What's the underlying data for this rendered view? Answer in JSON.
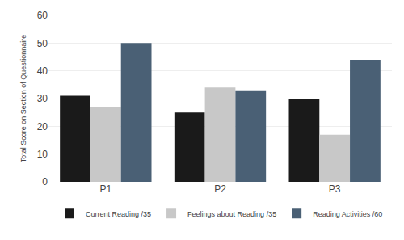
{
  "chart_data": {
    "type": "bar",
    "categories": [
      "P1",
      "P2",
      "P3"
    ],
    "series": [
      {
        "name": "Current Reading /35",
        "color": "#1a1a1a",
        "values": [
          31,
          25,
          30
        ]
      },
      {
        "name": "Feelings about Reading /35",
        "color": "#c8c8c8",
        "values": [
          27,
          34,
          17
        ]
      },
      {
        "name": "Reading Activities /60",
        "color": "#4a6075",
        "values": [
          50,
          33,
          44
        ]
      }
    ],
    "ylabel": "Total Score on Section of Questionnaire",
    "ylim": [
      0,
      60
    ],
    "yticks": [
      0,
      10,
      20,
      30,
      40,
      50,
      60
    ],
    "grid": true,
    "legend": "bottom"
  }
}
